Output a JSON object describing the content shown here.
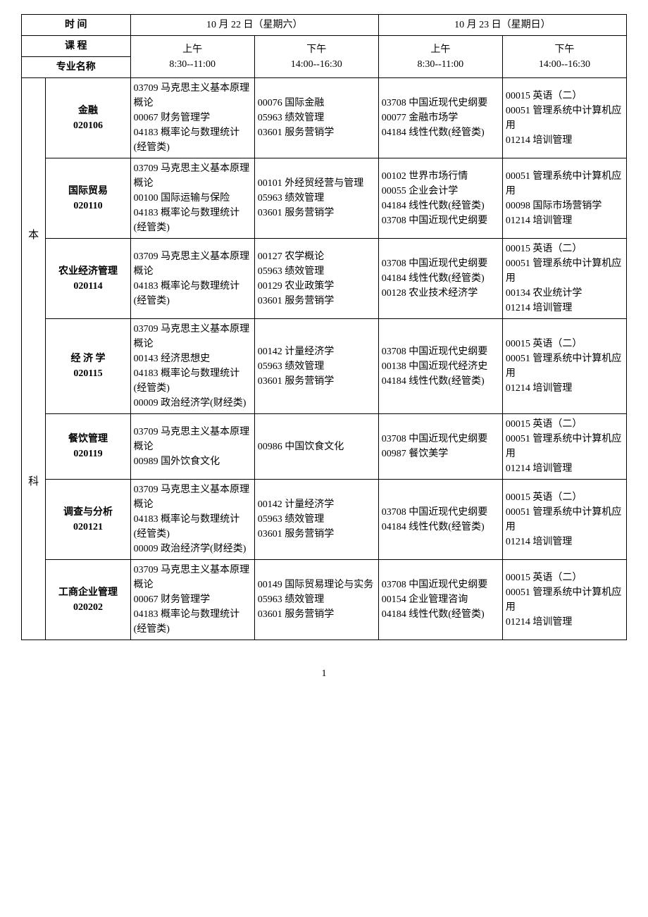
{
  "header": {
    "time_label": "时 间",
    "course_label": "课 程",
    "major_label": "专业名称",
    "day1": "10 月 22 日（星期六）",
    "day2": "10 月 23 日（星期日）",
    "am_label": "上午",
    "pm_label": "下午",
    "am_time": "8:30--11:00",
    "pm_time": "14:00--16:30"
  },
  "level_label_top": "本",
  "level_label_bottom": "科",
  "rows": [
    {
      "major_name": "金融",
      "major_code": "020106",
      "c1": "03709 马克思主义基本原理概论\n00067 财务管理学\n04183 概率论与数理统计(经管类)",
      "c2": "00076 国际金融\n05963 绩效管理\n03601 服务营销学",
      "c3": "03708 中国近现代史纲要\n00077 金融市场学\n04184 线性代数(经管类)",
      "c4": "00015 英语（二）\n00051 管理系统中计算机应用\n01214 培训管理"
    },
    {
      "major_name": "国际贸易",
      "major_code": "020110",
      "c1": "03709 马克思主义基本原理概论\n00100 国际运输与保险\n04183 概率论与数理统计(经管类)",
      "c2": "00101 外经贸经营与管理\n05963 绩效管理\n03601 服务营销学",
      "c3": "00102 世界市场行情\n00055 企业会计学\n04184 线性代数(经管类)\n03708 中国近现代史纲要",
      "c4": "00051 管理系统中计算机应用\n00098 国际市场营销学\n01214 培训管理"
    },
    {
      "major_name": "农业经济管理",
      "major_code": "020114",
      "c1": "03709 马克思主义基本原理概论\n04183 概率论与数理统计(经管类)",
      "c2": "00127 农学概论\n05963 绩效管理\n00129 农业政策学\n03601 服务营销学",
      "c3": "03708 中国近现代史纲要\n04184 线性代数(经管类)\n00128 农业技术经济学",
      "c4": "00015 英语（二）\n00051 管理系统中计算机应用\n00134 农业统计学\n01214 培训管理"
    },
    {
      "major_name": "经 济 学",
      "major_code": "020115",
      "c1": "03709 马克思主义基本原理概论\n00143 经济思想史\n04183 概率论与数理统计(经管类)\n00009 政治经济学(财经类)",
      "c2": "00142 计量经济学\n05963 绩效管理\n03601 服务营销学",
      "c3": "03708 中国近现代史纲要\n00138 中国近现代经济史\n04184 线性代数(经管类)",
      "c4": "00015 英语（二）\n00051 管理系统中计算机应用\n01214 培训管理"
    },
    {
      "major_name": "餐饮管理",
      "major_code": "020119",
      "c1": "03709 马克思主义基本原理概论\n00989 国外饮食文化",
      "c2": "00986 中国饮食文化",
      "c3": "03708 中国近现代史纲要\n00987 餐饮美学",
      "c4": "00015 英语（二）\n00051 管理系统中计算机应用\n01214 培训管理"
    },
    {
      "major_name": "调查与分析",
      "major_code": "020121",
      "c1": "03709 马克思主义基本原理概论\n04183 概率论与数理统计(经管类)\n00009 政治经济学(财经类)",
      "c2": "00142 计量经济学\n05963 绩效管理\n03601 服务营销学",
      "c3": "03708 中国近现代史纲要\n04184 线性代数(经管类)",
      "c4": "00015 英语（二）\n00051 管理系统中计算机应用\n01214 培训管理"
    },
    {
      "major_name": "工商企业管理",
      "major_code": "020202",
      "c1": "03709 马克思主义基本原理概论\n00067 财务管理学\n04183 概率论与数理统计(经管类)",
      "c2": "00149 国际贸易理论与实务\n05963 绩效管理\n03601 服务营销学",
      "c3": "03708 中国近现代史纲要\n00154 企业管理咨询\n04184 线性代数(经管类)",
      "c4": "00015 英语（二）\n00051 管理系统中计算机应用\n01214 培训管理"
    }
  ],
  "page_number": "1"
}
